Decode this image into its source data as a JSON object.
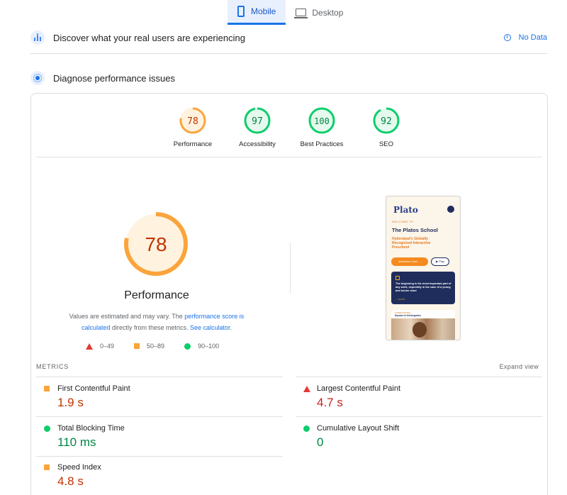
{
  "tabs": [
    {
      "label": "Mobile",
      "active": true,
      "icon": "smartphone-icon"
    },
    {
      "label": "Desktop",
      "active": false,
      "icon": "laptop-icon"
    }
  ],
  "field_section": {
    "title": "Discover what your real users are experiencing",
    "status": "No Data",
    "icon": "users-chart-icon"
  },
  "lab_section": {
    "title": "Diagnose performance issues",
    "icon": "lab-flask-icon"
  },
  "categories": [
    {
      "label": "Performance",
      "score": "78",
      "fraction": 0.78,
      "color": "#fba43c",
      "text_color": "#c33300",
      "bg": "#fff3e0"
    },
    {
      "label": "Accessibility",
      "score": "97",
      "fraction": 0.97,
      "color": "#0cce6b",
      "text_color": "#018642",
      "bg": "#e6f9ee"
    },
    {
      "label": "Best Practices",
      "score": "100",
      "fraction": 1.0,
      "color": "#0cce6b",
      "text_color": "#018642",
      "bg": "#e6f9ee"
    },
    {
      "label": "SEO",
      "score": "92",
      "fraction": 0.92,
      "color": "#0cce6b",
      "text_color": "#018642",
      "bg": "#e6f9ee"
    }
  ],
  "performance": {
    "score": "78",
    "fraction": 0.78,
    "title": "Performance",
    "note_prefix": "Values are estimated and may vary. The ",
    "note_link1": "performance score is calculated",
    "note_middle": " directly from these metrics. ",
    "note_link2": "See calculator",
    "note_suffix": "."
  },
  "legend": [
    {
      "range": "0–49",
      "shape": "triangle",
      "color": "#e53935"
    },
    {
      "range": "50–89",
      "shape": "square",
      "color": "#fba43c"
    },
    {
      "range": "90–100",
      "shape": "circle",
      "color": "#0cce6b"
    }
  ],
  "screenshot": {
    "logo": "Plato",
    "welcome": "WELCOME TO",
    "school": "The Platos School",
    "tagline": "Hyderabad's Globally Recognized Interactive Preschool",
    "admissions_btn": "Admissions Open →",
    "play_btn": "▶ Play",
    "quote": "The beginning is the most important part of any work, especially in the case of a young and tender mind",
    "quote_by": "— PLATO",
    "card_tag": "KINDERGARTEN",
    "card_title": "Daycare to Kindergarten"
  },
  "metrics": {
    "heading": "METRICS",
    "expand": "Expand view",
    "items": [
      {
        "name": "First Contentful Paint",
        "value": "1.9 s",
        "rating": "average"
      },
      {
        "name": "Largest Contentful Paint",
        "value": "4.7 s",
        "rating": "fail"
      },
      {
        "name": "Total Blocking Time",
        "value": "110 ms",
        "rating": "pass"
      },
      {
        "name": "Cumulative Layout Shift",
        "value": "0",
        "rating": "pass"
      },
      {
        "name": "Speed Index",
        "value": "4.8 s",
        "rating": "average"
      }
    ]
  }
}
